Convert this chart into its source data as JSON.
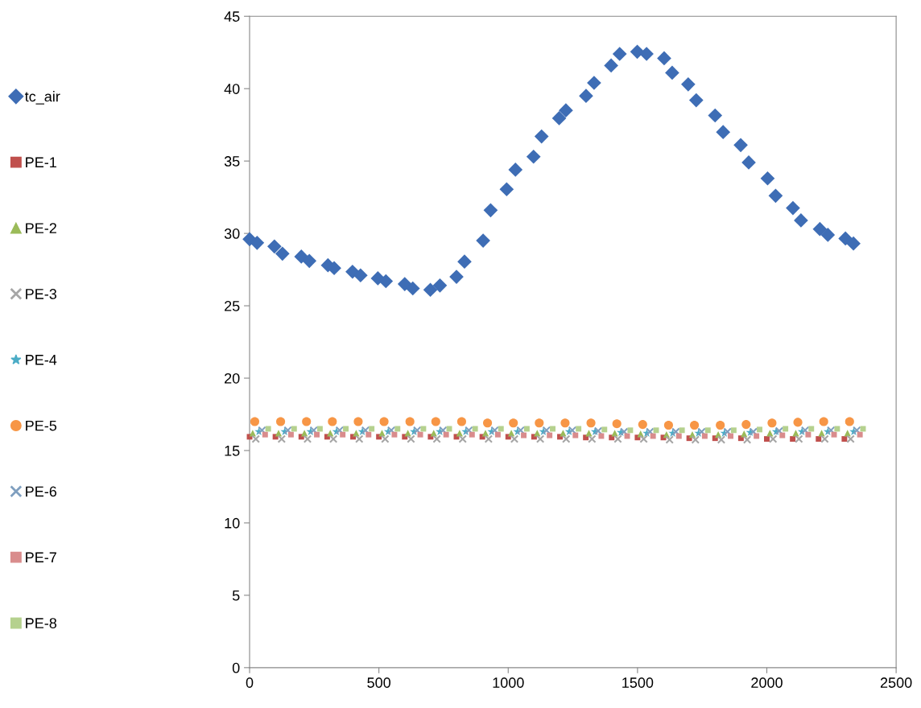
{
  "chart_data": {
    "type": "scatter",
    "series": [
      {
        "name": "tc_air",
        "color": "#3e6db5",
        "marker": "diamond",
        "x": [
          0,
          29,
          96,
          127,
          200,
          231,
          303,
          327,
          398,
          429,
          496,
          527,
          600,
          631,
          699,
          736,
          800,
          831,
          903,
          932,
          994,
          1028,
          1098,
          1129,
          1197,
          1223,
          1301,
          1332,
          1398,
          1431,
          1499,
          1535,
          1603,
          1634,
          1696,
          1727,
          1800,
          1831,
          1899,
          1930,
          2003,
          2034,
          2101,
          2132,
          2205,
          2236,
          2304,
          2335
        ],
        "values": [
          29.6,
          29.35,
          29.1,
          28.6,
          28.4,
          28.1,
          27.8,
          27.6,
          27.35,
          27.1,
          26.9,
          26.7,
          26.5,
          26.2,
          26.1,
          26.4,
          27.0,
          28.05,
          29.5,
          31.6,
          33.05,
          34.4,
          35.3,
          36.7,
          37.96,
          38.5,
          39.5,
          40.4,
          41.6,
          42.4,
          42.55,
          42.4,
          42.1,
          41.1,
          40.3,
          39.2,
          38.15,
          37.0,
          36.1,
          34.9,
          33.8,
          32.6,
          31.75,
          30.9,
          30.3,
          29.9,
          29.65,
          29.3
        ]
      },
      {
        "name": "PE-1",
        "color": "#c0504d",
        "marker": "square",
        "x": [
          0,
          100,
          200,
          300,
          400,
          500,
          600,
          700,
          800,
          900,
          1000,
          1100,
          1200,
          1300,
          1400,
          1500,
          1600,
          1700,
          1800,
          1900,
          2000,
          2100,
          2200,
          2300
        ],
        "values": [
          15.95,
          15.95,
          15.95,
          15.95,
          15.95,
          15.95,
          15.95,
          15.95,
          15.95,
          15.95,
          15.95,
          15.95,
          15.95,
          15.9,
          15.9,
          15.9,
          15.9,
          15.85,
          15.85,
          15.85,
          15.8,
          15.8,
          15.8,
          15.8
        ]
      },
      {
        "name": "PE-2",
        "color": "#9bbb59",
        "marker": "triangle",
        "x": [
          12,
          112,
          212,
          312,
          412,
          512,
          612,
          712,
          812,
          912,
          1012,
          1112,
          1212,
          1312,
          1412,
          1512,
          1612,
          1712,
          1812,
          1912,
          2012,
          2112,
          2212,
          2312
        ],
        "values": [
          16.2,
          16.2,
          16.2,
          16.2,
          16.2,
          16.2,
          16.2,
          16.2,
          16.2,
          16.2,
          16.2,
          16.2,
          16.2,
          16.2,
          16.2,
          16.15,
          16.1,
          16.1,
          16.1,
          16.15,
          16.2,
          16.2,
          16.2,
          16.2
        ]
      },
      {
        "name": "PE-3",
        "color": "#a6a6a6",
        "marker": "cross",
        "x": [
          24,
          124,
          224,
          324,
          424,
          524,
          624,
          724,
          824,
          924,
          1024,
          1124,
          1224,
          1324,
          1424,
          1524,
          1624,
          1724,
          1824,
          1924,
          2024,
          2124,
          2224,
          2324
        ],
        "values": [
          15.8,
          15.8,
          15.8,
          15.8,
          15.8,
          15.8,
          15.8,
          15.8,
          15.8,
          15.8,
          15.8,
          15.8,
          15.8,
          15.8,
          15.8,
          15.8,
          15.75,
          15.75,
          15.75,
          15.75,
          15.8,
          15.8,
          15.8,
          15.8
        ]
      },
      {
        "name": "PE-4",
        "color": "#4bacc6",
        "marker": "star",
        "x": [
          36,
          136,
          236,
          336,
          436,
          536,
          636,
          736,
          836,
          936,
          1036,
          1136,
          1236,
          1336,
          1436,
          1536,
          1636,
          1736,
          1836,
          1936,
          2036,
          2136,
          2236,
          2336
        ],
        "values": [
          16.3,
          16.3,
          16.3,
          16.3,
          16.3,
          16.3,
          16.3,
          16.3,
          16.3,
          16.3,
          16.3,
          16.3,
          16.3,
          16.3,
          16.25,
          16.2,
          16.2,
          16.2,
          16.2,
          16.25,
          16.3,
          16.3,
          16.3,
          16.3
        ]
      },
      {
        "name": "PE-5",
        "color": "#f79646",
        "marker": "circle",
        "x": [
          20,
          120,
          220,
          320,
          420,
          520,
          620,
          720,
          820,
          920,
          1020,
          1120,
          1220,
          1320,
          1420,
          1520,
          1620,
          1720,
          1820,
          1920,
          2020,
          2120,
          2220,
          2320
        ],
        "values": [
          17.0,
          17.0,
          17.0,
          17.0,
          17.0,
          17.0,
          17.0,
          17.0,
          17.0,
          16.9,
          16.9,
          16.9,
          16.9,
          16.9,
          16.85,
          16.8,
          16.75,
          16.75,
          16.75,
          16.8,
          16.9,
          16.95,
          17.0,
          17.0
        ]
      },
      {
        "name": "PE-6",
        "color": "#7f9fbf",
        "marker": "cross",
        "x": [
          48,
          148,
          248,
          348,
          448,
          548,
          648,
          748,
          848,
          948,
          1048,
          1148,
          1248,
          1348,
          1448,
          1548,
          1648,
          1748,
          1848,
          1948,
          2048,
          2148,
          2248,
          2348
        ],
        "values": [
          16.4,
          16.4,
          16.4,
          16.4,
          16.4,
          16.4,
          16.4,
          16.4,
          16.4,
          16.4,
          16.4,
          16.4,
          16.4,
          16.35,
          16.3,
          16.3,
          16.3,
          16.3,
          16.3,
          16.3,
          16.35,
          16.4,
          16.4,
          16.4
        ]
      },
      {
        "name": "PE-7",
        "color": "#d98c8c",
        "marker": "square",
        "x": [
          60,
          160,
          260,
          360,
          460,
          560,
          660,
          760,
          860,
          960,
          1060,
          1160,
          1260,
          1360,
          1460,
          1560,
          1660,
          1760,
          1860,
          1960,
          2060,
          2160,
          2260,
          2360
        ],
        "values": [
          16.1,
          16.1,
          16.1,
          16.1,
          16.1,
          16.1,
          16.1,
          16.1,
          16.1,
          16.1,
          16.05,
          16.05,
          16.05,
          16.0,
          16.0,
          16.0,
          16.0,
          16.0,
          16.0,
          16.0,
          16.05,
          16.1,
          16.1,
          16.1
        ]
      },
      {
        "name": "PE-8",
        "color": "#b5d18e",
        "marker": "square",
        "x": [
          72,
          172,
          272,
          372,
          472,
          572,
          672,
          772,
          872,
          972,
          1072,
          1172,
          1272,
          1372,
          1472,
          1572,
          1672,
          1772,
          1872,
          1972,
          2072,
          2172,
          2272,
          2372
        ],
        "values": [
          16.5,
          16.5,
          16.5,
          16.5,
          16.5,
          16.5,
          16.5,
          16.5,
          16.5,
          16.5,
          16.5,
          16.5,
          16.5,
          16.45,
          16.4,
          16.4,
          16.4,
          16.4,
          16.4,
          16.45,
          16.5,
          16.5,
          16.5,
          16.5
        ]
      }
    ],
    "xlim": [
      0,
      2500
    ],
    "xticks": [
      0,
      500,
      1000,
      1500,
      2000,
      2500
    ],
    "ylim": [
      0,
      45
    ],
    "yticks": [
      0,
      5,
      10,
      15,
      20,
      25,
      30,
      35,
      40,
      45
    ],
    "grid": false,
    "legend": "left"
  }
}
